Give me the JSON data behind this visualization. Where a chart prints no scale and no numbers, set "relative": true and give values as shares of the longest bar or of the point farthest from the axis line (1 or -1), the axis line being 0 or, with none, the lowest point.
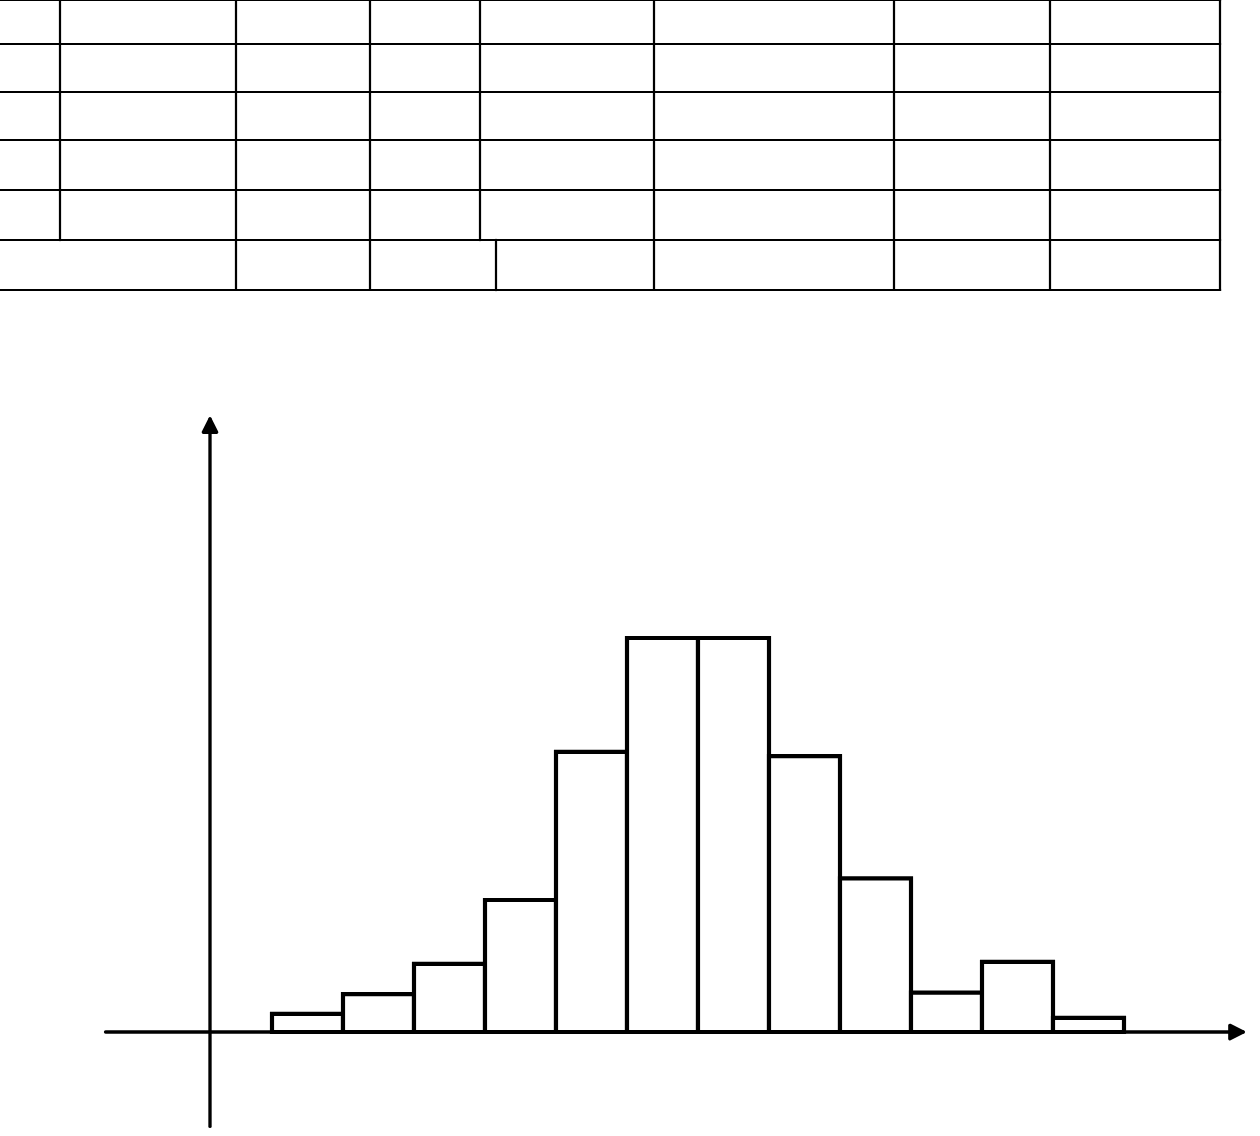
{
  "chart_data": {
    "type": "bar",
    "relative": true,
    "categories": [
      null,
      null,
      null,
      null,
      null,
      null,
      null,
      null,
      null,
      null,
      null,
      null
    ],
    "values": [
      0.046,
      0.096,
      0.173,
      0.335,
      0.711,
      1,
      1,
      0.7,
      0.39,
      0.1,
      0.178,
      0.036
    ],
    "color": "#ffffff",
    "legend": false
  }
}
